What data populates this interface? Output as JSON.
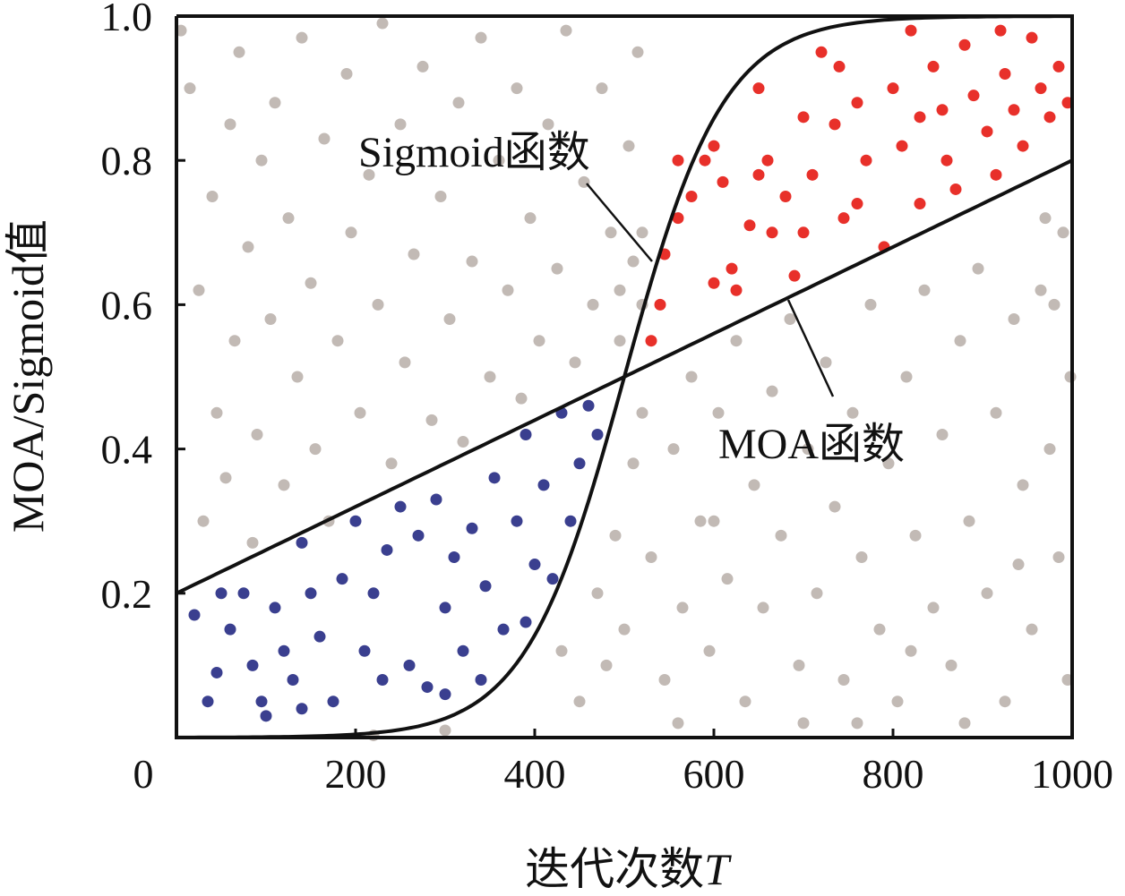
{
  "chart_data": {
    "type": "scatter",
    "title": "",
    "xlabel": "迭代次数",
    "xlabel_var": "T",
    "ylabel": "MOA/Sigmoid值",
    "xlim": [
      0,
      1000
    ],
    "ylim": [
      0,
      1.0
    ],
    "x_ticks": [
      "0",
      "200",
      "400",
      "600",
      "800",
      "1000"
    ],
    "x_tick_values": [
      0,
      200,
      400,
      600,
      800,
      1000
    ],
    "y_ticks": [
      "0.2",
      "0.4",
      "0.6",
      "0.8",
      "1.0"
    ],
    "y_tick_values": [
      0.2,
      0.4,
      0.6,
      0.8,
      1.0
    ],
    "grid": false,
    "lines": [
      {
        "name": "Sigmoid函数",
        "label": "Sigmoid函数",
        "kind": "sigmoid",
        "center": 500,
        "steepness": 0.018,
        "color": "#111111"
      },
      {
        "name": "MOA函数",
        "label": "MOA函数",
        "kind": "linear",
        "y_at_0": 0.2,
        "y_at_1000": 0.8,
        "color": "#111111"
      }
    ],
    "series": [
      {
        "name": "gray",
        "color": "#c2bab5",
        "points": [
          [
            5,
            0.98
          ],
          [
            15,
            0.9
          ],
          [
            25,
            0.62
          ],
          [
            30,
            0.3
          ],
          [
            40,
            0.75
          ],
          [
            45,
            0.45
          ],
          [
            55,
            0.36
          ],
          [
            60,
            0.85
          ],
          [
            65,
            0.55
          ],
          [
            70,
            0.95
          ],
          [
            80,
            0.68
          ],
          [
            85,
            0.27
          ],
          [
            90,
            0.42
          ],
          [
            95,
            0.8
          ],
          [
            105,
            0.58
          ],
          [
            110,
            0.88
          ],
          [
            120,
            0.35
          ],
          [
            125,
            0.72
          ],
          [
            135,
            0.5
          ],
          [
            140,
            0.97
          ],
          [
            150,
            0.63
          ],
          [
            155,
            0.4
          ],
          [
            165,
            0.83
          ],
          [
            170,
            0.3
          ],
          [
            180,
            0.55
          ],
          [
            190,
            0.92
          ],
          [
            195,
            0.7
          ],
          [
            205,
            0.45
          ],
          [
            215,
            0.78
          ],
          [
            225,
            0.6
          ],
          [
            230,
            0.99
          ],
          [
            240,
            0.38
          ],
          [
            250,
            0.85
          ],
          [
            255,
            0.52
          ],
          [
            265,
            0.67
          ],
          [
            275,
            0.93
          ],
          [
            285,
            0.44
          ],
          [
            295,
            0.75
          ],
          [
            305,
            0.58
          ],
          [
            315,
            0.88
          ],
          [
            320,
            0.41
          ],
          [
            330,
            0.66
          ],
          [
            340,
            0.97
          ],
          [
            350,
            0.5
          ],
          [
            360,
            0.8
          ],
          [
            370,
            0.62
          ],
          [
            380,
            0.9
          ],
          [
            385,
            0.47
          ],
          [
            395,
            0.72
          ],
          [
            405,
            0.55
          ],
          [
            415,
            0.85
          ],
          [
            425,
            0.65
          ],
          [
            435,
            0.98
          ],
          [
            445,
            0.52
          ],
          [
            455,
            0.77
          ],
          [
            465,
            0.6
          ],
          [
            475,
            0.9
          ],
          [
            485,
            0.7
          ],
          [
            495,
            0.55
          ],
          [
            505,
            0.82
          ],
          [
            515,
            0.95
          ],
          [
            520,
            0.7
          ],
          [
            430,
            0.12
          ],
          [
            450,
            0.05
          ],
          [
            470,
            0.2
          ],
          [
            480,
            0.1
          ],
          [
            490,
            0.28
          ],
          [
            500,
            0.15
          ],
          [
            510,
            0.38
          ],
          [
            520,
            0.45
          ],
          [
            530,
            0.25
          ],
          [
            545,
            0.08
          ],
          [
            555,
            0.4
          ],
          [
            565,
            0.18
          ],
          [
            575,
            0.5
          ],
          [
            585,
            0.3
          ],
          [
            595,
            0.12
          ],
          [
            605,
            0.45
          ],
          [
            615,
            0.22
          ],
          [
            625,
            0.55
          ],
          [
            635,
            0.05
          ],
          [
            645,
            0.35
          ],
          [
            655,
            0.18
          ],
          [
            665,
            0.48
          ],
          [
            675,
            0.28
          ],
          [
            685,
            0.58
          ],
          [
            695,
            0.1
          ],
          [
            705,
            0.4
          ],
          [
            715,
            0.2
          ],
          [
            725,
            0.52
          ],
          [
            735,
            0.32
          ],
          [
            745,
            0.08
          ],
          [
            755,
            0.45
          ],
          [
            765,
            0.25
          ],
          [
            775,
            0.6
          ],
          [
            785,
            0.15
          ],
          [
            795,
            0.38
          ],
          [
            805,
            0.05
          ],
          [
            815,
            0.5
          ],
          [
            825,
            0.28
          ],
          [
            835,
            0.62
          ],
          [
            845,
            0.18
          ],
          [
            855,
            0.42
          ],
          [
            865,
            0.1
          ],
          [
            875,
            0.55
          ],
          [
            885,
            0.3
          ],
          [
            895,
            0.65
          ],
          [
            905,
            0.2
          ],
          [
            915,
            0.45
          ],
          [
            925,
            0.05
          ],
          [
            935,
            0.58
          ],
          [
            945,
            0.35
          ],
          [
            955,
            0.15
          ],
          [
            965,
            0.62
          ],
          [
            975,
            0.4
          ],
          [
            985,
            0.25
          ],
          [
            995,
            0.08
          ],
          [
            998,
            0.5
          ],
          [
            990,
            0.7
          ],
          [
            980,
            0.6
          ],
          [
            970,
            0.72
          ],
          [
            760,
            0.02
          ],
          [
            820,
            0.12
          ],
          [
            880,
            0.02
          ],
          [
            940,
            0.24
          ],
          [
            300,
            0.01
          ],
          [
            220,
            0.003
          ],
          [
            560,
            0.02
          ],
          [
            600,
            0.3
          ],
          [
            700,
            0.02
          ],
          [
            520,
            0.6
          ],
          [
            510,
            0.66
          ],
          [
            495,
            0.62
          ]
        ]
      },
      {
        "name": "red",
        "color": "#e8302a",
        "points": [
          [
            530,
            0.55
          ],
          [
            540,
            0.6
          ],
          [
            545,
            0.67
          ],
          [
            560,
            0.72
          ],
          [
            575,
            0.75
          ],
          [
            590,
            0.8
          ],
          [
            600,
            0.82
          ],
          [
            610,
            0.77
          ],
          [
            620,
            0.65
          ],
          [
            625,
            0.62
          ],
          [
            640,
            0.71
          ],
          [
            650,
            0.9
          ],
          [
            660,
            0.8
          ],
          [
            665,
            0.7
          ],
          [
            680,
            0.75
          ],
          [
            690,
            0.64
          ],
          [
            700,
            0.86
          ],
          [
            710,
            0.78
          ],
          [
            720,
            0.95
          ],
          [
            735,
            0.85
          ],
          [
            745,
            0.72
          ],
          [
            760,
            0.88
          ],
          [
            770,
            0.8
          ],
          [
            790,
            0.68
          ],
          [
            800,
            0.9
          ],
          [
            810,
            0.82
          ],
          [
            820,
            0.98
          ],
          [
            830,
            0.74
          ],
          [
            845,
            0.93
          ],
          [
            855,
            0.87
          ],
          [
            860,
            0.8
          ],
          [
            870,
            0.76
          ],
          [
            880,
            0.96
          ],
          [
            890,
            0.89
          ],
          [
            905,
            0.84
          ],
          [
            915,
            0.78
          ],
          [
            925,
            0.92
          ],
          [
            935,
            0.87
          ],
          [
            945,
            0.82
          ],
          [
            955,
            0.97
          ],
          [
            965,
            0.9
          ],
          [
            975,
            0.86
          ],
          [
            985,
            0.93
          ],
          [
            995,
            0.88
          ],
          [
            560,
            0.8
          ],
          [
            600,
            0.63
          ],
          [
            650,
            0.78
          ],
          [
            740,
            0.93
          ],
          [
            830,
            0.86
          ],
          [
            700,
            0.7
          ],
          [
            760,
            0.74
          ],
          [
            920,
            0.98
          ]
        ]
      },
      {
        "name": "blue",
        "color": "#3a3f8f",
        "points": [
          [
            20,
            0.17
          ],
          [
            35,
            0.05
          ],
          [
            45,
            0.09
          ],
          [
            60,
            0.15
          ],
          [
            75,
            0.2
          ],
          [
            85,
            0.1
          ],
          [
            95,
            0.05
          ],
          [
            110,
            0.18
          ],
          [
            120,
            0.12
          ],
          [
            130,
            0.08
          ],
          [
            140,
            0.27
          ],
          [
            150,
            0.2
          ],
          [
            160,
            0.14
          ],
          [
            175,
            0.05
          ],
          [
            185,
            0.22
          ],
          [
            200,
            0.3
          ],
          [
            210,
            0.12
          ],
          [
            220,
            0.2
          ],
          [
            235,
            0.26
          ],
          [
            250,
            0.32
          ],
          [
            260,
            0.1
          ],
          [
            270,
            0.28
          ],
          [
            280,
            0.07
          ],
          [
            290,
            0.33
          ],
          [
            300,
            0.18
          ],
          [
            310,
            0.25
          ],
          [
            320,
            0.12
          ],
          [
            330,
            0.29
          ],
          [
            345,
            0.21
          ],
          [
            355,
            0.36
          ],
          [
            365,
            0.15
          ],
          [
            380,
            0.3
          ],
          [
            390,
            0.42
          ],
          [
            400,
            0.24
          ],
          [
            410,
            0.35
          ],
          [
            420,
            0.22
          ],
          [
            430,
            0.45
          ],
          [
            440,
            0.3
          ],
          [
            450,
            0.38
          ],
          [
            460,
            0.46
          ],
          [
            470,
            0.42
          ],
          [
            140,
            0.04
          ],
          [
            230,
            0.08
          ],
          [
            340,
            0.08
          ],
          [
            50,
            0.2
          ],
          [
            100,
            0.03
          ],
          [
            300,
            0.06
          ],
          [
            390,
            0.16
          ]
        ]
      }
    ]
  }
}
